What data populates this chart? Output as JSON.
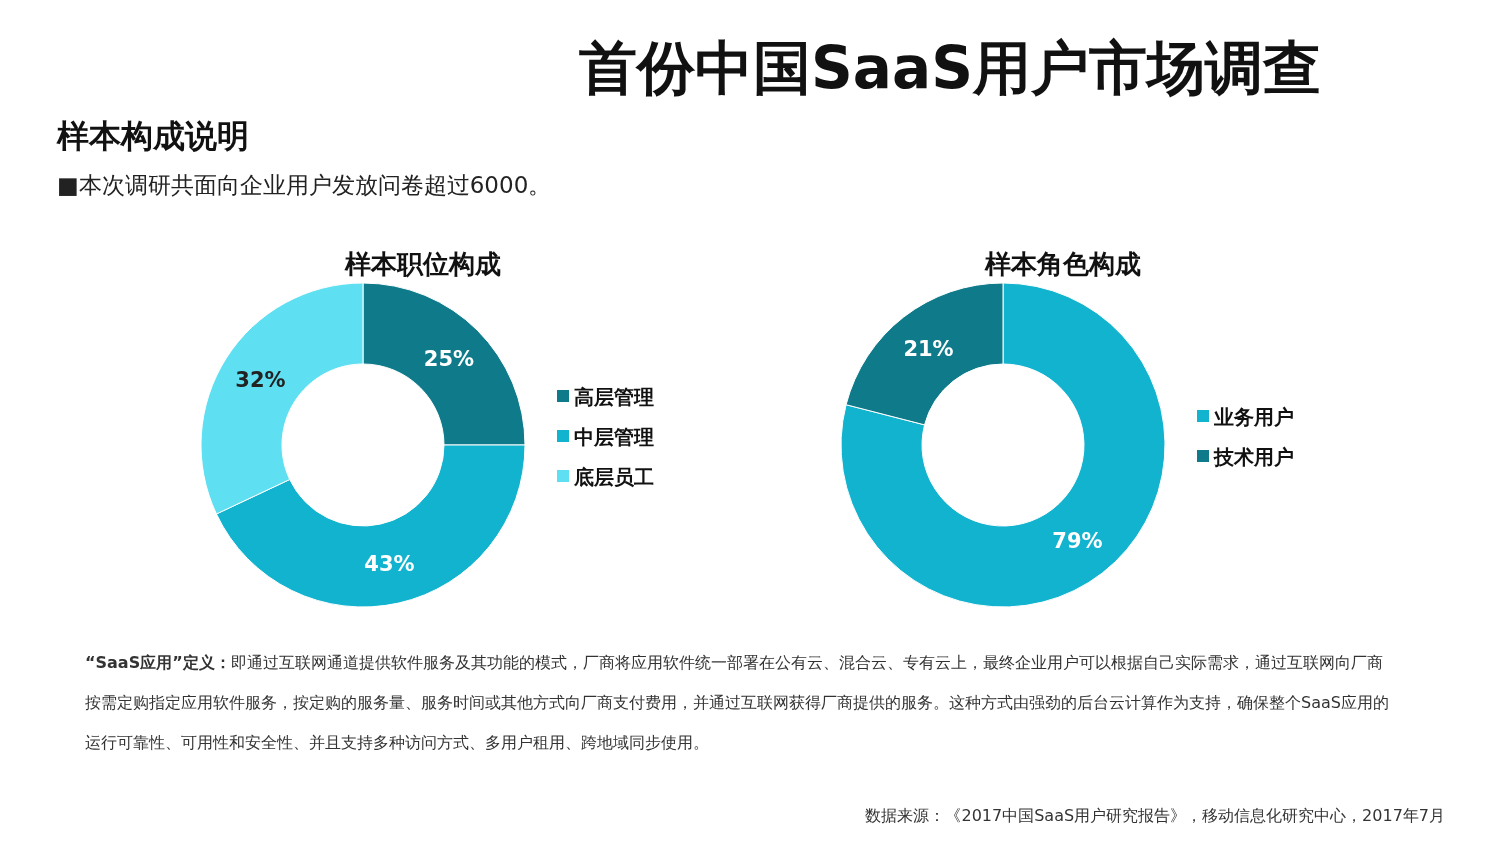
{
  "chart_data": [
    {
      "type": "other",
      "title": "首份中国SaaS用户市场调查",
      "subtitle": "样本构成说明",
      "annotations": [
        "■本次调研共面向企业用户发放问卷超过6000。",
        "**“SaaS应用”定义：**即通过互联网通道提供软件服务及其功能的模式，厂商将应用软件统一部署在公有云、混合云、专有云上，最终企业用户可以根据自己实际需求，通过互联网向厂商按需定购指定应用软件服务，按定购的服务量、服务时间或其他方式向厂商支付费用，并通过互联网获得厂商提供的服务。这种方式由强劲的后台云计算作为支持，确保整个SaaS应用的运行可靠性、可用性和安全性、并且支持多种访问方式、多用户租用、跨地域同步使用。",
        "数据来源：《2017中国SaaS用户研究报告》，移动信息化研究中心，2017年7月"
      ]
    },
    {
      "type": "donut",
      "title": "样本职位构成",
      "categories": [
        "高层管理",
        "中层管理",
        "底层员工"
      ],
      "values": [
        25,
        43,
        32
      ],
      "colors": [
        "#0e7a8a",
        "#12b3cf",
        "#5ee0f2"
      ],
      "value_labels": [
        "25%",
        "43%",
        "32%"
      ],
      "legend": "right"
    },
    {
      "type": "donut",
      "title": "样本角色构成",
      "categories": [
        "业务用户",
        "技术用户"
      ],
      "values": [
        79,
        21
      ],
      "colors": [
        "#12b3cf",
        "#0e7a8a"
      ],
      "value_labels": [
        "79%",
        "21%"
      ],
      "legend": "right"
    }
  ]
}
